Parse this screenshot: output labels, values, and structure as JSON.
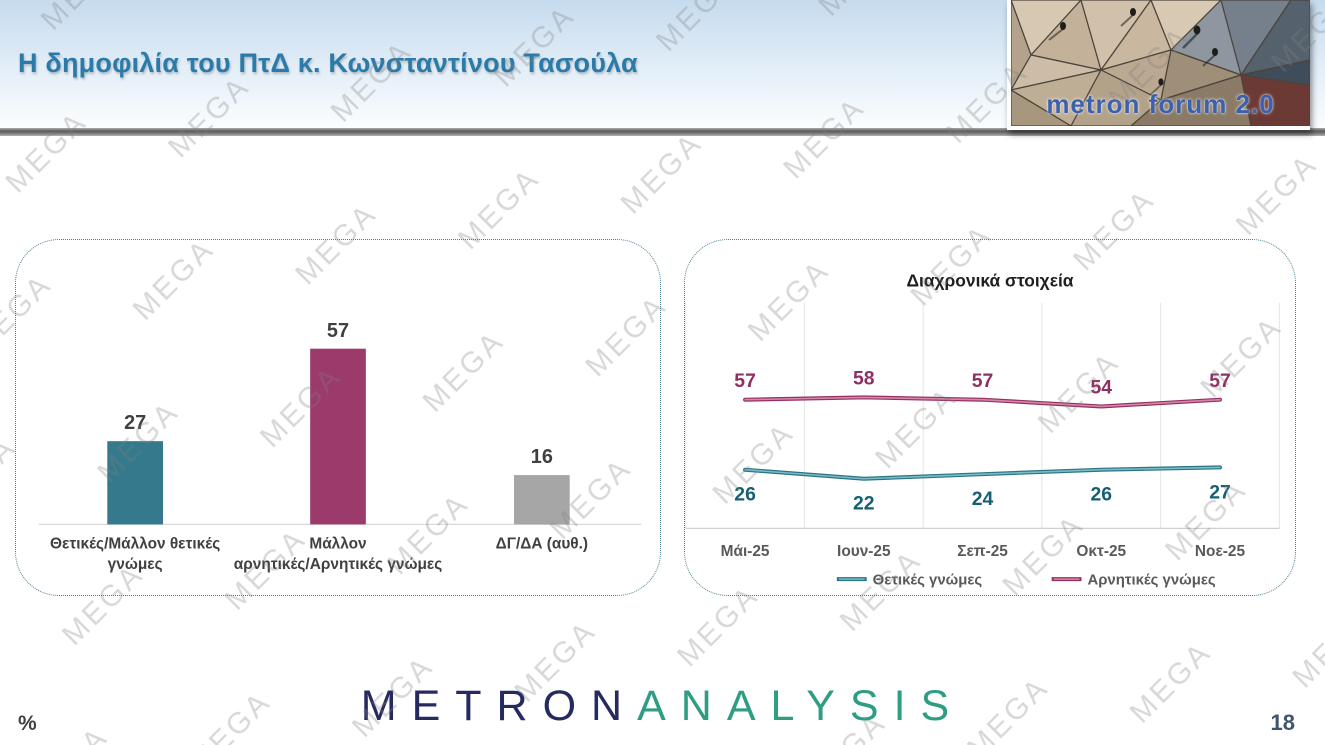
{
  "header": {
    "title": "Η δημοφιλία του ΠτΔ κ. Κωνσταντίνου Τασούλα",
    "logo_text": "metron forum 2.0"
  },
  "watermark": {
    "text": "MEGA"
  },
  "footer": {
    "logo_part1": "METRON",
    "logo_part2": "ANALYSIS",
    "percent": "%",
    "page_number": "18"
  },
  "colors": {
    "title_accent": "#2a7ba9",
    "positive_teal": "#35798c",
    "negative_magenta": "#9d3a6c",
    "neutral_gray": "#a6a6a6",
    "metron_navy": "#262b5f",
    "analysis_green": "#2f9d84"
  },
  "chart_data": [
    {
      "type": "bar",
      "title": "",
      "categories": [
        "Θετικές/Μάλλον θετικές γνώμες",
        "Μάλλον αρνητικές/Αρνητικές γνώμες",
        "ΔΓ/ΔΑ (αυθ.)"
      ],
      "category_lines": [
        [
          "Θετικές/Μάλλον θετικές",
          "γνώμες"
        ],
        [
          "Μάλλον",
          "αρνητικές/Αρνητικές γνώμες"
        ],
        [
          "ΔΓ/ΔΑ (αυθ.)"
        ]
      ],
      "values": [
        27,
        57,
        16
      ],
      "bar_colors": [
        "#35798c",
        "#9d3a6c",
        "#a6a6a6"
      ],
      "value_label_color": "#404040",
      "xlabel": "",
      "ylabel": "",
      "ylim": [
        0,
        70
      ],
      "grid": false,
      "legend_position": "none"
    },
    {
      "type": "line",
      "title": "Διαχρονικά στοιχεία",
      "categories": [
        "Μάι-25",
        "Ιουν-25",
        "Σεπ-25",
        "Οκτ-25",
        "Νοε-25"
      ],
      "series": [
        {
          "name": "Θετικές γνώμες",
          "values": [
            26,
            22,
            24,
            26,
            27
          ],
          "color": "#2a7586",
          "core_color": "#79bcc6",
          "label_color": "#145f74",
          "label_side": "below"
        },
        {
          "name": "Αρνητικές γνώμες",
          "values": [
            57,
            58,
            57,
            54,
            57
          ],
          "color": "#943062",
          "core_color": "#d687a9",
          "label_color": "#8e2f63",
          "label_side": "above"
        }
      ],
      "xlabel": "",
      "ylabel": "",
      "ylim": [
        0,
        100
      ],
      "grid": true,
      "legend_position": "bottom"
    }
  ]
}
